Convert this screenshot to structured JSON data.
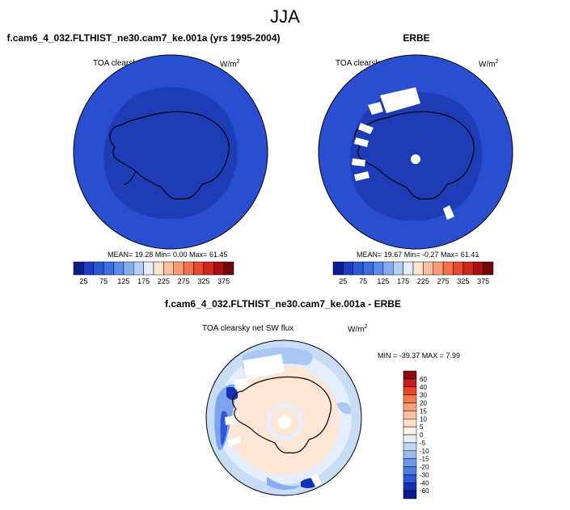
{
  "season": "JJA",
  "panels": [
    {
      "title": "f.cam6_4_032.FLTHIST_ne30.cam7_ke.001a (yrs 1995-2004)",
      "variable": "TOA clearsky net SW flux",
      "units_base": "W/m",
      "units_exp": "2",
      "stats": "MEAN=  19.28  Min=   0.00  Max=  61.45",
      "colorbar": {
        "labels": [
          "25",
          "75",
          "125",
          "175",
          "225",
          "275",
          "325",
          "375"
        ],
        "colors": [
          "#0c1d8c",
          "#1a3dc2",
          "#2a56d8",
          "#3e6de2",
          "#5c8aea",
          "#86acf2",
          "#b5cef8",
          "#e4eefc",
          "#fde4cf",
          "#fcc0a0",
          "#f99c74",
          "#f3714b",
          "#e7492e",
          "#cf261c",
          "#a71014",
          "#72080d"
        ]
      }
    },
    {
      "title": "ERBE",
      "variable": "TOA clearsky net SW flux",
      "units_base": "W/m",
      "units_exp": "2",
      "stats": "MEAN=  19.67  Min=  -0.27  Max=  61.41",
      "colorbar": {
        "labels": [
          "25",
          "75",
          "125",
          "175",
          "225",
          "275",
          "325",
          "375"
        ],
        "colors": [
          "#0c1d8c",
          "#1a3dc2",
          "#2a56d8",
          "#3e6de2",
          "#5c8aea",
          "#86acf2",
          "#b5cef8",
          "#e4eefc",
          "#fde4cf",
          "#fcc0a0",
          "#f99c74",
          "#f3714b",
          "#e7492e",
          "#cf261c",
          "#a71014",
          "#72080d"
        ]
      }
    },
    {
      "title": "f.cam6_4_032.FLTHIST_ne30.cam7_ke.001a - ERBE",
      "variable": "TOA clearsky net SW flux",
      "units_base": "W/m",
      "units_exp": "2",
      "stats": "MIN = -39.37 MAX =   7.99",
      "colorbar": {
        "labels": [
          "60",
          "40",
          "30",
          "20",
          "15",
          "10",
          "5",
          "0",
          "-5",
          "-10",
          "-15",
          "-20",
          "-30",
          "-40",
          "-60"
        ],
        "colors": [
          "#8a0b12",
          "#c51d1d",
          "#e94727",
          "#f47a4a",
          "#fb9e76",
          "#fcc09d",
          "#fde0c8",
          "#fdf0e4",
          "#e6f0fd",
          "#bfd6f8",
          "#97baf2",
          "#6d98ea",
          "#4c7de4",
          "#2c58d5",
          "#1432b4",
          "#0a1c8a"
        ]
      }
    }
  ]
}
